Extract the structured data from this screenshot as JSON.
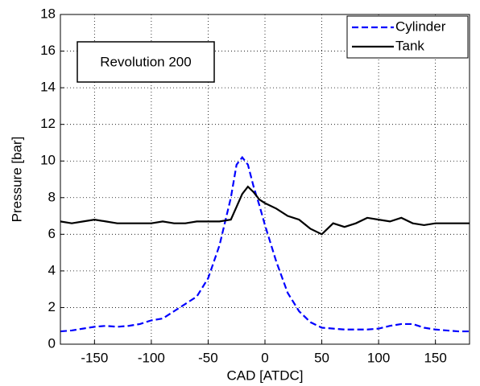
{
  "chart_data": {
    "type": "line",
    "xlabel": "CAD [ATDC]",
    "ylabel": "Pressure [bar]",
    "annotation": "Revolution 200",
    "x": [
      -180,
      -170,
      -160,
      -150,
      -140,
      -130,
      -120,
      -110,
      -100,
      -90,
      -80,
      -70,
      -60,
      -50,
      -40,
      -30,
      -25,
      -20,
      -15,
      -10,
      -5,
      0,
      10,
      20,
      30,
      40,
      50,
      60,
      70,
      80,
      90,
      100,
      110,
      120,
      130,
      140,
      150,
      160,
      170,
      180
    ],
    "series": [
      {
        "name": "Cylinder",
        "color": "#0000ff",
        "dash": true,
        "values": [
          0.7,
          0.75,
          0.85,
          0.95,
          1.0,
          0.95,
          1.0,
          1.1,
          1.3,
          1.4,
          1.8,
          2.2,
          2.6,
          3.6,
          5.4,
          8.0,
          9.8,
          10.2,
          9.8,
          8.6,
          7.6,
          6.5,
          4.5,
          2.8,
          1.8,
          1.2,
          0.9,
          0.85,
          0.8,
          0.8,
          0.8,
          0.85,
          1.0,
          1.1,
          1.1,
          0.9,
          0.8,
          0.75,
          0.7,
          0.7
        ]
      },
      {
        "name": "Tank",
        "color": "#000000",
        "dash": false,
        "values": [
          6.7,
          6.6,
          6.7,
          6.8,
          6.7,
          6.6,
          6.6,
          6.6,
          6.6,
          6.7,
          6.6,
          6.6,
          6.7,
          6.7,
          6.7,
          6.8,
          7.5,
          8.2,
          8.6,
          8.3,
          7.9,
          7.7,
          7.4,
          7.0,
          6.8,
          6.3,
          6.0,
          6.6,
          6.4,
          6.6,
          6.9,
          6.8,
          6.7,
          6.9,
          6.6,
          6.5,
          6.6,
          6.6,
          6.6,
          6.6
        ]
      }
    ],
    "xlim": [
      -180,
      180
    ],
    "xticks": [
      -150,
      -100,
      -50,
      0,
      50,
      100,
      150
    ],
    "ylim": [
      0,
      18
    ],
    "yticks": [
      0,
      2,
      4,
      6,
      8,
      10,
      12,
      14,
      16,
      18
    ],
    "grid": true,
    "legend": "upper right"
  }
}
